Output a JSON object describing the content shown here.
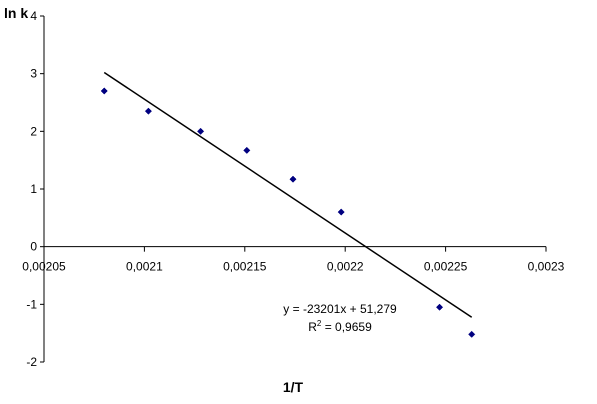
{
  "chart_data": {
    "type": "scatter",
    "ylabel": "ln k",
    "xlabel": "1/T",
    "xlim": [
      0.00205,
      0.0023
    ],
    "ylim": [
      -2,
      4
    ],
    "x_ticks": [
      0.00205,
      0.0021,
      0.00215,
      0.0022,
      0.00225,
      0.0023
    ],
    "x_tick_labels": [
      "0,00205",
      "0,0021",
      "0,00215",
      "0,0022",
      "0,00225",
      "0,0023"
    ],
    "y_ticks": [
      -2,
      -1,
      0,
      1,
      2,
      3,
      4
    ],
    "y_tick_labels": [
      "-2",
      "-1",
      "0",
      "1",
      "2",
      "3",
      "4"
    ],
    "grid": false,
    "series": [
      {
        "marker_color": "#000080",
        "points": [
          {
            "x": 0.00208,
            "y": 2.7
          },
          {
            "x": 0.002102,
            "y": 2.35
          },
          {
            "x": 0.002128,
            "y": 2.0
          },
          {
            "x": 0.002151,
            "y": 1.67
          },
          {
            "x": 0.002174,
            "y": 1.17
          },
          {
            "x": 0.002198,
            "y": 0.6
          },
          {
            "x": 0.002247,
            "y": -1.05
          },
          {
            "x": 0.002263,
            "y": -1.52
          }
        ]
      }
    ],
    "trendline": {
      "type": "linear",
      "slope": -23201,
      "intercept": 51.279,
      "x_range": [
        0.00208,
        0.002263
      ],
      "color": "#000000",
      "equation_label": "y = -23201x + 51,279",
      "r2_prefix": "R",
      "r2_sup": "2",
      "r2_suffix": " = 0,9659"
    }
  }
}
